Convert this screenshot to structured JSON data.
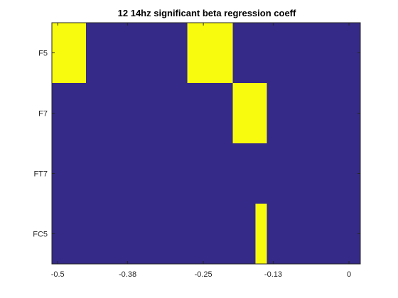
{
  "chart_data": {
    "type": "heatmap",
    "title": "12 14hz significant beta regression coeff",
    "xlabel": "",
    "ylabel": "",
    "x_ticks": [
      "-0.5",
      "-0.38",
      "-0.25",
      "-0.13",
      "0"
    ],
    "x_tick_values": [
      -0.5,
      -0.38,
      -0.25,
      -0.13,
      0
    ],
    "xlim": [
      -0.51,
      0.0195
    ],
    "y_categories": [
      "F5",
      "F7",
      "FT7",
      "FC5"
    ],
    "cell_width": 0.0195,
    "colors": {
      "significant": "#f9fb0e",
      "not_significant": "#352a87"
    },
    "significant_cells": [
      {
        "channel": "F5",
        "x_start": -0.51,
        "x_end": -0.4515
      },
      {
        "channel": "F5",
        "x_start": -0.2775,
        "x_end": -0.1995
      },
      {
        "channel": "F7",
        "x_start": -0.1995,
        "x_end": -0.141
      },
      {
        "channel": "FC5",
        "x_start": -0.1605,
        "x_end": -0.141
      }
    ],
    "grid": false,
    "legend": "none"
  }
}
